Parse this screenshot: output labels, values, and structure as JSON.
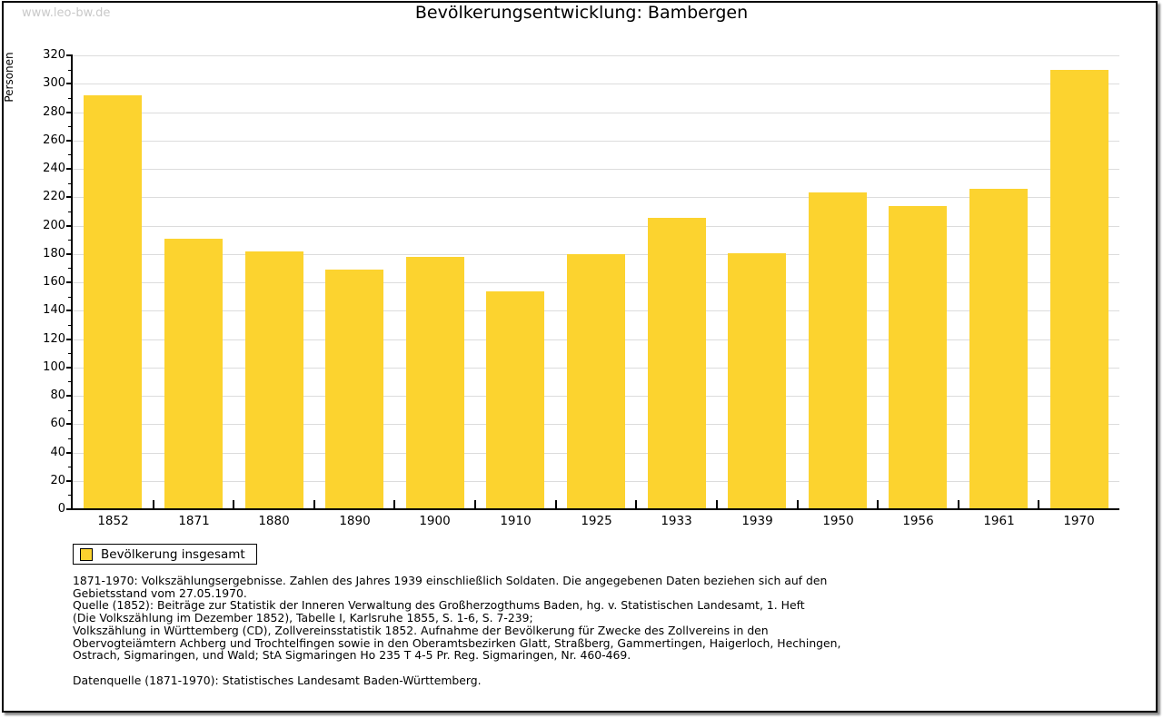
{
  "watermark": "www.leo-bw.de",
  "legend": {
    "label": "Bevölkerung insgesamt"
  },
  "chart_data": {
    "type": "bar",
    "title": "Bevölkerungsentwicklung: Bambergen",
    "ylabel": "Personen",
    "xlabel": "",
    "categories": [
      "1852",
      "1871",
      "1880",
      "1890",
      "1900",
      "1910",
      "1925",
      "1933",
      "1939",
      "1950",
      "1956",
      "1961",
      "1970"
    ],
    "series": [
      {
        "name": "Bevölkerung insgesamt",
        "values": [
          291,
          190,
          181,
          168,
          177,
          153,
          179,
          205,
          180,
          223,
          213,
          225,
          309
        ]
      }
    ],
    "ylim": [
      0,
      320
    ],
    "ytick_step": 20,
    "ytick_minor_step": 10,
    "grid": true,
    "bar_color": "#FCD32F",
    "gridline_color": "#dcdcdc",
    "legend_position": "bottom-left"
  },
  "footnotes": {
    "para1_lines": [
      "1871-1970: Volkszählungsergebnisse. Zahlen des Jahres 1939 einschließlich Soldaten. Die angegebenen Daten beziehen sich auf den",
      "Gebietsstand vom 27.05.1970.",
      "Quelle (1852): Beiträge zur Statistik der Inneren Verwaltung des Großherzogthums Baden, hg. v. Statistischen Landesamt, 1. Heft",
      "(Die Volkszählung im Dezember 1852), Tabelle I, Karlsruhe 1855, S. 1-6, S. 7-239;",
      "Volkszählung in Württemberg (CD), Zollvereinsstatistik 1852. Aufnahme der Bevölkerung für Zwecke des Zollvereins in den",
      "Obervogteiämtern Achberg und Trochtelfingen sowie in den Oberamtsbezirken Glatt, Straßberg, Gammertingen, Haigerloch, Hechingen,",
      "Ostrach, Sigmaringen, und Wald; StA Sigmaringen Ho 235 T 4-5 Pr. Reg. Sigmaringen, Nr. 460-469."
    ],
    "para2": "Datenquelle (1871-1970): Statistisches Landesamt Baden-Württemberg."
  }
}
